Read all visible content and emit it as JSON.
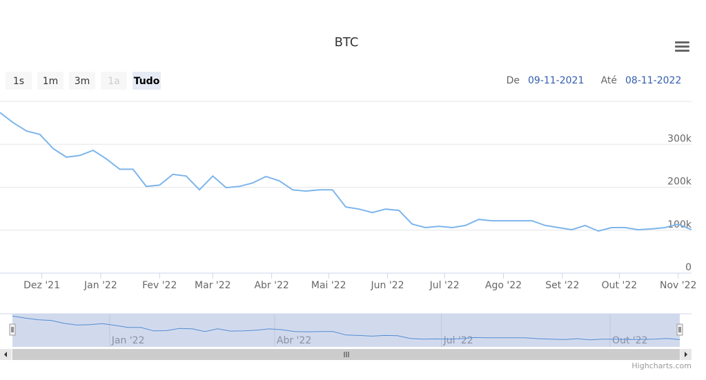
{
  "chart_data": {
    "type": "line",
    "title": "BTC",
    "range_buttons": [
      "1s",
      "1m",
      "3m",
      "1a",
      "Tudo"
    ],
    "disabled_button": "1a",
    "selected_button": "Tudo",
    "from_label": "De",
    "from": "09-11-2021",
    "to_label": "Até",
    "to": "08-11-2022",
    "credits": "Highcharts.com",
    "xlim": [
      "2021-11-09",
      "2022-11-08"
    ],
    "xticks": [
      {
        "value": "2021-12-01",
        "label": "Dez '21"
      },
      {
        "value": "2022-01-01",
        "label": "Jan '22"
      },
      {
        "value": "2022-02-01",
        "label": "Fev '22"
      },
      {
        "value": "2022-03-01",
        "label": "Mar '22"
      },
      {
        "value": "2022-04-01",
        "label": "Abr '22"
      },
      {
        "value": "2022-05-01",
        "label": "Mai '22"
      },
      {
        "value": "2022-06-01",
        "label": "Jun '22"
      },
      {
        "value": "2022-07-01",
        "label": "Jul '22"
      },
      {
        "value": "2022-08-01",
        "label": "Ago '22"
      },
      {
        "value": "2022-09-01",
        "label": "Set '22"
      },
      {
        "value": "2022-10-01",
        "label": "Out '22"
      },
      {
        "value": "2022-11-01",
        "label": "Nov '22"
      }
    ],
    "navigator_ticks": [
      {
        "value": "2022-01-01",
        "label": "Jan '22"
      },
      {
        "value": "2022-04-01",
        "label": "Abr '22"
      },
      {
        "value": "2022-07-01",
        "label": "Jul '22"
      },
      {
        "value": "2022-10-01",
        "label": "Out '22"
      }
    ],
    "ylim": [
      0,
      400000
    ],
    "yticks": [
      0,
      {
        "value": 100000,
        "label": "100k"
      },
      {
        "value": 200000,
        "label": "200k"
      },
      {
        "value": 300000,
        "label": "300k"
      }
    ],
    "grid": true,
    "color": "#7cb5ec",
    "x": [
      "2021-11-09",
      "2021-11-16",
      "2021-11-23",
      "2021-11-30",
      "2021-12-07",
      "2021-12-14",
      "2021-12-21",
      "2021-12-28",
      "2022-01-04",
      "2022-01-11",
      "2022-01-18",
      "2022-01-25",
      "2022-02-01",
      "2022-02-08",
      "2022-02-15",
      "2022-02-22",
      "2022-03-01",
      "2022-03-08",
      "2022-03-15",
      "2022-03-22",
      "2022-03-29",
      "2022-04-05",
      "2022-04-12",
      "2022-04-19",
      "2022-04-26",
      "2022-05-03",
      "2022-05-10",
      "2022-05-17",
      "2022-05-24",
      "2022-05-31",
      "2022-06-07",
      "2022-06-14",
      "2022-06-21",
      "2022-06-28",
      "2022-07-05",
      "2022-07-12",
      "2022-07-19",
      "2022-07-26",
      "2022-08-02",
      "2022-08-09",
      "2022-08-16",
      "2022-08-23",
      "2022-08-30",
      "2022-09-06",
      "2022-09-13",
      "2022-09-20",
      "2022-09-27",
      "2022-10-04",
      "2022-10-11",
      "2022-10-18",
      "2022-10-25",
      "2022-11-01",
      "2022-11-08"
    ],
    "values": [
      374000,
      350000,
      331000,
      323000,
      290000,
      270000,
      274000,
      286000,
      266000,
      242000,
      242000,
      202000,
      205000,
      230000,
      226000,
      194000,
      226000,
      199000,
      202000,
      210000,
      225000,
      215000,
      194000,
      191000,
      194000,
      194000,
      154000,
      149000,
      141000,
      149000,
      146000,
      114000,
      106000,
      109000,
      106000,
      111000,
      125000,
      122000,
      122000,
      122000,
      122000,
      111000,
      106000,
      101000,
      111000,
      98000,
      106000,
      106000,
      101000,
      103000,
      106000,
      114000,
      101000
    ]
  }
}
